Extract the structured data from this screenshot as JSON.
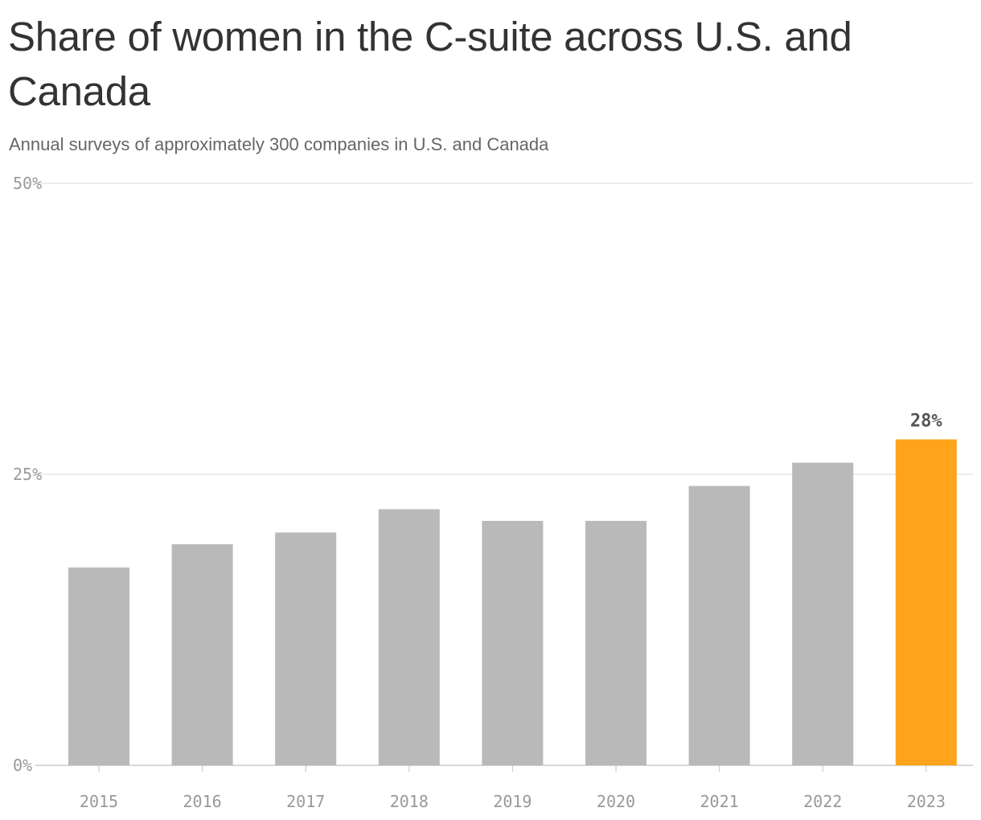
{
  "chart_data": {
    "type": "bar",
    "title": "Share of women in the C-suite across U.S. and Canada",
    "subtitle": "Annual surveys of approximately 300 companies in U.S. and Canada",
    "categories": [
      "2015",
      "2016",
      "2017",
      "2018",
      "2019",
      "2020",
      "2021",
      "2022",
      "2023"
    ],
    "values": [
      17,
      19,
      20,
      22,
      21,
      21,
      24,
      26,
      28
    ],
    "value_unit": "percent",
    "ylim": [
      0,
      50
    ],
    "yticks": [
      {
        "value": 0,
        "label": "0%"
      },
      {
        "value": 25,
        "label": "25%"
      },
      {
        "value": 50,
        "label": "50%"
      }
    ],
    "xlabel": "",
    "ylabel": "",
    "grid": true,
    "legend": "none",
    "highlight": {
      "category": "2023",
      "label": "28%"
    },
    "colors": {
      "bar": "#b9b9b9",
      "highlight": "#ffa41b",
      "gridline": "#e0e0e0",
      "axis": "#cccccc"
    }
  }
}
